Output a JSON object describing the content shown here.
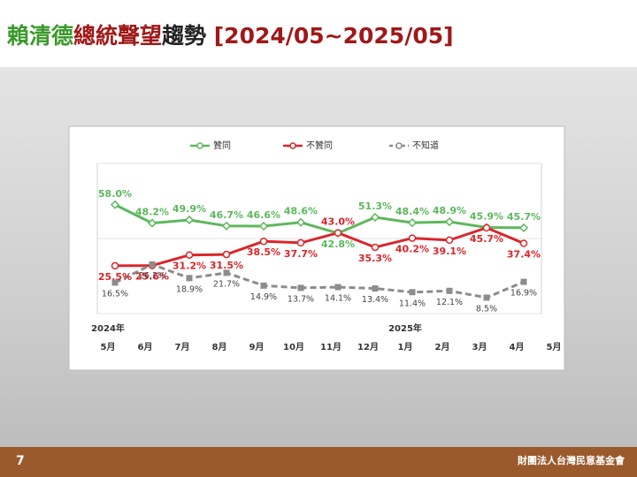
{
  "slide": {
    "title_parts": [
      {
        "text": "賴清德",
        "color": "#3a9a2a"
      },
      {
        "text": "總統聲望",
        "color": "#a01818"
      },
      {
        "text": "趨勢",
        "color": "#222222"
      },
      {
        "text": " [2024/05~2025/05]",
        "color": "#a01818"
      }
    ],
    "page_number": "7",
    "organization": "財團法人台灣民意基金會"
  },
  "chart_data": {
    "type": "line",
    "categories": [
      "5月",
      "6月",
      "7月",
      "8月",
      "9月",
      "10月",
      "11月",
      "12月",
      "1月",
      "2月",
      "3月",
      "4月",
      "5月"
    ],
    "annotations": [
      "2024年",
      "2025年"
    ],
    "ylim": [
      0,
      80
    ],
    "yticks": [
      0,
      40,
      80
    ],
    "grid": true,
    "series": [
      {
        "name": "贊同",
        "color": "#5cb85c",
        "marker": "diamond",
        "dash": false,
        "values": [
          58.0,
          48.2,
          49.9,
          46.7,
          46.6,
          48.6,
          42.8,
          51.3,
          48.4,
          48.9,
          45.9,
          45.7,
          null
        ],
        "value_labels": [
          "58.0%",
          "48.2%",
          "49.9%",
          "46.7%",
          "46.6%",
          "48.6%",
          "42.8%",
          "51.3%",
          "48.4%",
          "48.9%",
          "45.9%",
          "45.7%",
          null
        ]
      },
      {
        "name": "不贊同",
        "color": "#d9262b",
        "marker": "circle",
        "dash": false,
        "values": [
          25.5,
          25.6,
          31.2,
          31.5,
          38.5,
          37.7,
          43.0,
          35.3,
          40.2,
          39.1,
          45.7,
          37.4,
          null
        ],
        "value_labels": [
          "25.5%",
          "25.6%",
          "31.2%",
          "31.5%",
          "38.5%",
          "37.7%",
          "43.0%",
          "35.3%",
          "40.2%",
          "39.1%",
          "45.7%",
          "37.4%",
          null
        ]
      },
      {
        "name": "不知道",
        "color": "#8c8c8c",
        "marker": "square",
        "dash": true,
        "values": [
          16.5,
          26.2,
          18.9,
          21.7,
          14.9,
          13.7,
          14.1,
          13.4,
          11.4,
          12.1,
          8.5,
          16.9,
          null
        ],
        "value_labels": [
          "16.5%",
          "26.2%",
          "18.9%",
          "21.7%",
          "14.9%",
          "13.7%",
          "14.1%",
          "13.4%",
          "11.4%",
          "12.1%",
          "8.5%",
          "16.9%",
          null
        ]
      }
    ]
  }
}
